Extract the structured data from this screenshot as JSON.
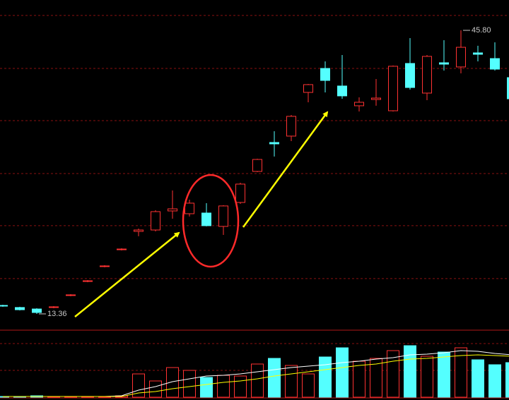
{
  "chart_data": [
    {
      "type": "candlestick",
      "open": [
        14.33,
        14.09,
        13.92,
        14.09,
        15.46,
        17.07,
        18.77,
        20.7,
        22.8,
        22.96,
        25.14,
        24.82,
        24.9,
        23.37,
        26.11,
        29.66,
        32.97,
        33.7,
        38.7,
        41.44,
        39.43,
        37.17,
        37.89,
        36.6,
        42.01,
        38.62,
        42.09,
        41.61,
        43.22,
        42.57,
        40.39
      ],
      "high": [
        14.41,
        14.17,
        14.01,
        14.25,
        15.62,
        17.23,
        18.93,
        20.87,
        23.12,
        25.22,
        27.48,
        26.43,
        26.03,
        25.79,
        28.37,
        31.11,
        34.26,
        36.12,
        39.67,
        42.25,
        42.98,
        38.13,
        40.23,
        41.77,
        44.91,
        42.98,
        44.67,
        45.8,
        44.03,
        44.43,
        40.8
      ],
      "low": [
        14.17,
        13.76,
        13.36,
        14.01,
        15.38,
        16.99,
        18.69,
        20.62,
        22.24,
        22.8,
        24.25,
        24.5,
        23.37,
        22.4,
        25.95,
        29.58,
        31.36,
        33.13,
        37.57,
        38.7,
        37.97,
        36.52,
        37.17,
        36.52,
        39.02,
        37.81,
        41.2,
        40.88,
        42.25,
        41.2,
        37.81
      ],
      "close": [
        14.25,
        13.84,
        13.52,
        14.17,
        15.54,
        17.15,
        18.85,
        20.78,
        22.96,
        25.06,
        25.38,
        26.03,
        23.45,
        25.71,
        28.21,
        31.03,
        32.81,
        35.96,
        39.59,
        40.07,
        38.3,
        37.57,
        38.05,
        41.69,
        39.26,
        42.82,
        41.93,
        43.86,
        43.06,
        41.36,
        37.97
      ],
      "up_color": "#ff3232",
      "down_color": "#54ffff",
      "ylim": [
        11.5,
        49.27
      ],
      "yticks": [
        17.4,
        23.45,
        29.42,
        35.47,
        41.44,
        47.5
      ],
      "grid": true,
      "low_label": "13.36",
      "high_label": "45.80"
    },
    {
      "type": "volume",
      "values": [
        1,
        1,
        2,
        1,
        1,
        1,
        1,
        2,
        33,
        23,
        42,
        38,
        28,
        31,
        30,
        47,
        55,
        45,
        33,
        57,
        70,
        51,
        55,
        66,
        73,
        58,
        64,
        70,
        53,
        46,
        49
      ],
      "ylim": [
        0,
        95
      ],
      "yticks": [
        38,
        76
      ],
      "grid": true,
      "series": [
        {
          "color": "#ffffff",
          "values": [
            1,
            1,
            1,
            1,
            1,
            1,
            1,
            2,
            10,
            15,
            22,
            26,
            30,
            31,
            33,
            36,
            39,
            42,
            44,
            46,
            49,
            51,
            54,
            56,
            60,
            61,
            63,
            66,
            65,
            62,
            60
          ]
        },
        {
          "color": "#ffff00",
          "values": [
            1,
            1,
            1,
            1,
            1,
            1,
            1,
            1,
            6,
            8,
            12,
            15,
            18,
            21,
            23,
            26,
            30,
            33,
            36,
            39,
            42,
            45,
            47,
            51,
            54,
            55,
            57,
            59,
            60,
            59,
            58
          ]
        }
      ]
    }
  ]
}
